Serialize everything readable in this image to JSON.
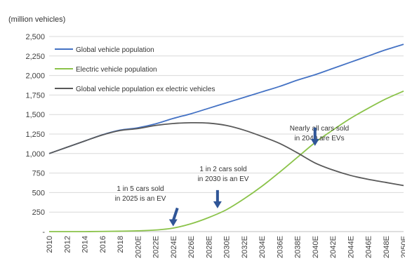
{
  "chart_data": {
    "type": "line",
    "unit_label": "(million vehicles)",
    "x": [
      "2010",
      "2012",
      "2014",
      "2016",
      "2018",
      "2020E",
      "2022E",
      "2024E",
      "2026E",
      "2028E",
      "2030E",
      "2032E",
      "2034E",
      "2036E",
      "2038E",
      "2040E",
      "2042E",
      "2044E",
      "2046E",
      "2048E",
      "2050E"
    ],
    "x_tick_labels": [
      "2010",
      "2012",
      "2014",
      "2016",
      "2018",
      "2020E",
      "2022E",
      "2024E",
      "2026E",
      "2028E",
      "2030E",
      "2032E",
      "2034E",
      "2036E",
      "2038E",
      "2040E",
      "2042E",
      "2044E",
      "2046E",
      "2048E",
      "2050E"
    ],
    "ylim": [
      0,
      2500
    ],
    "y_ticks": [
      0,
      250,
      500,
      750,
      1000,
      1250,
      1500,
      1750,
      2000,
      2250,
      2500
    ],
    "y_tick_labels": [
      "-",
      "250",
      "500",
      "750",
      "1,000",
      "1,250",
      "1,500",
      "1,750",
      "2,000",
      "2,250",
      "2,500"
    ],
    "grid": "horizontal",
    "legend_position": "top-left",
    "series": [
      {
        "name": "Global vehicle population",
        "color": "#4472C4",
        "values": [
          1000,
          1080,
          1160,
          1240,
          1300,
          1330,
          1380,
          1450,
          1510,
          1580,
          1650,
          1720,
          1790,
          1860,
          1940,
          2010,
          2090,
          2170,
          2250,
          2330,
          2400
        ]
      },
      {
        "name": "Electric vehicle population",
        "color": "#8BC34A",
        "values": [
          0,
          0,
          0,
          2,
          5,
          10,
          20,
          45,
          100,
          180,
          280,
          420,
          580,
          760,
          950,
          1140,
          1300,
          1450,
          1580,
          1700,
          1800
        ]
      },
      {
        "name": "Global vehicle population ex electric vehicles",
        "color": "#595959",
        "values": [
          1000,
          1080,
          1160,
          1238,
          1295,
          1320,
          1360,
          1385,
          1395,
          1390,
          1360,
          1300,
          1220,
          1130,
          1010,
          880,
          790,
          720,
          670,
          630,
          590
        ]
      }
    ],
    "annotations": [
      {
        "lines": [
          "1 in 5 cars sold",
          "in 2025 is an EV"
        ],
        "arrow_x": "2024E",
        "arrow_y": 50
      },
      {
        "lines": [
          "1 in 2 cars sold",
          "in 2030 is an EV"
        ],
        "arrow_x": "2029E",
        "arrow_y": 280
      },
      {
        "lines": [
          "Nearly all cars sold",
          "in 2040 are EVs"
        ],
        "arrow_x": "2040E",
        "arrow_y": 1080
      }
    ]
  }
}
